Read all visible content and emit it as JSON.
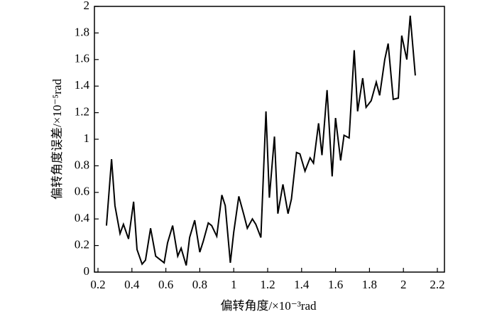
{
  "chart_data": {
    "type": "line",
    "xlabel": "偏转角度/×10⁻³rad",
    "ylabel": "偏转角度误差/×10⁻⁵rad",
    "x": [
      0.25,
      0.28,
      0.3,
      0.33,
      0.35,
      0.38,
      0.41,
      0.43,
      0.46,
      0.48,
      0.51,
      0.54,
      0.56,
      0.59,
      0.61,
      0.64,
      0.67,
      0.69,
      0.72,
      0.74,
      0.77,
      0.8,
      0.82,
      0.85,
      0.87,
      0.9,
      0.93,
      0.95,
      0.98,
      1.0,
      1.03,
      1.06,
      1.08,
      1.11,
      1.13,
      1.16,
      1.19,
      1.21,
      1.24,
      1.26,
      1.29,
      1.32,
      1.34,
      1.37,
      1.39,
      1.42,
      1.45,
      1.47,
      1.5,
      1.52,
      1.55,
      1.58,
      1.6,
      1.63,
      1.65,
      1.68,
      1.71,
      1.73,
      1.76,
      1.78,
      1.81,
      1.84,
      1.86,
      1.89,
      1.91,
      1.94,
      1.97,
      1.99,
      2.02,
      2.04,
      2.07
    ],
    "series": [
      {
        "color": "#000000",
        "values": [
          0.35,
          0.85,
          0.5,
          0.29,
          0.36,
          0.25,
          0.53,
          0.17,
          0.06,
          0.09,
          0.33,
          0.12,
          0.1,
          0.07,
          0.22,
          0.35,
          0.12,
          0.18,
          0.05,
          0.26,
          0.39,
          0.15,
          0.23,
          0.37,
          0.35,
          0.27,
          0.58,
          0.5,
          0.07,
          0.3,
          0.57,
          0.43,
          0.33,
          0.4,
          0.36,
          0.26,
          1.21,
          0.56,
          1.02,
          0.44,
          0.66,
          0.44,
          0.55,
          0.9,
          0.89,
          0.76,
          0.86,
          0.82,
          1.12,
          0.88,
          1.37,
          0.72,
          1.16,
          0.84,
          1.03,
          1.01,
          1.67,
          1.21,
          1.46,
          1.24,
          1.29,
          1.43,
          1.33,
          1.6,
          1.72,
          1.3,
          1.31,
          1.78,
          1.6,
          1.93,
          1.48
        ]
      }
    ],
    "xlim": [
      0.2,
      2.2
    ],
    "xticks": [
      0.2,
      0.4,
      0.6,
      0.8,
      1,
      1.2,
      1.4,
      1.6,
      1.8,
      2,
      2.2
    ],
    "ylim": [
      0,
      2
    ],
    "yticks": [
      0,
      0.2,
      0.4,
      0.6,
      0.8,
      1,
      1.2,
      1.4,
      1.6,
      1.8,
      2
    ]
  }
}
